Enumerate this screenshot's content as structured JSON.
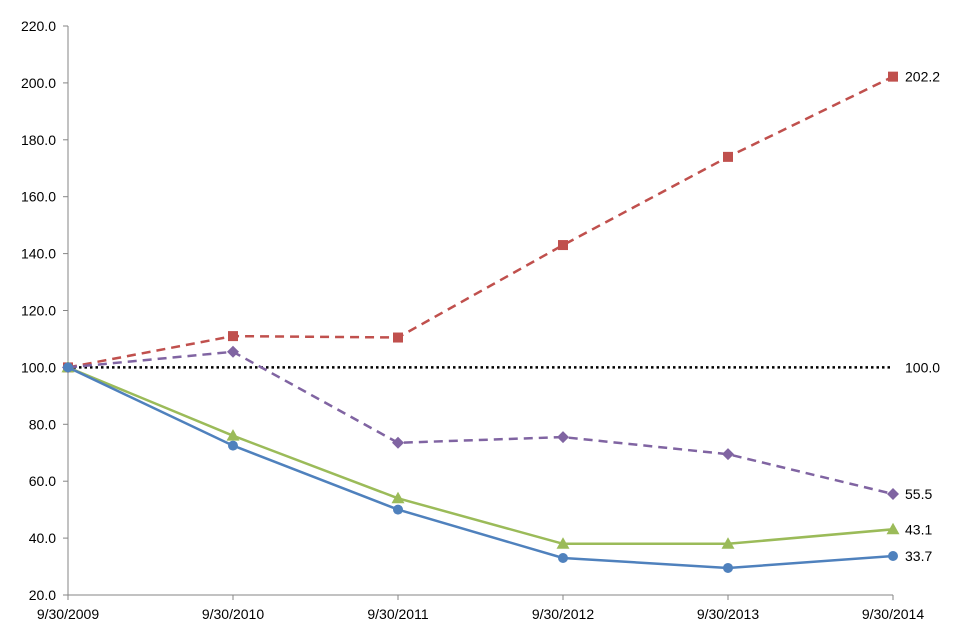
{
  "chart_data": {
    "type": "line",
    "title": "",
    "xlabel": "",
    "ylabel": "",
    "x": [
      "9/30/2009",
      "9/30/2010",
      "9/30/2011",
      "9/30/2012",
      "9/30/2013",
      "9/30/2014"
    ],
    "ylim": [
      20,
      220
    ],
    "yticks": [
      "20.0",
      "40.0",
      "60.0",
      "80.0",
      "100.0",
      "120.0",
      "140.0",
      "160.0",
      "180.0",
      "200.0",
      "220.0"
    ],
    "grid": false,
    "legend": "none",
    "reference_line": {
      "value": 100,
      "label": "100.0",
      "style": "dotted",
      "color": "#000000"
    },
    "series": [
      {
        "color": "#C0504D",
        "dash": true,
        "marker": "square",
        "values": [
          100,
          111,
          110.5,
          143,
          174,
          202.2
        ],
        "end_label": "202.2"
      },
      {
        "color": "#8064A2",
        "dash": true,
        "marker": "diamond",
        "values": [
          100,
          105.5,
          73.5,
          75.5,
          69.5,
          55.5
        ],
        "end_label": "55.5"
      },
      {
        "color": "#9BBB59",
        "dash": false,
        "marker": "triangle",
        "values": [
          100,
          76,
          54,
          38,
          38,
          43.1
        ],
        "end_label": "43.1"
      },
      {
        "color": "#4F81BD",
        "dash": false,
        "marker": "circle",
        "values": [
          100,
          72.5,
          50,
          33,
          29.5,
          33.7
        ],
        "end_label": "33.7"
      }
    ]
  }
}
